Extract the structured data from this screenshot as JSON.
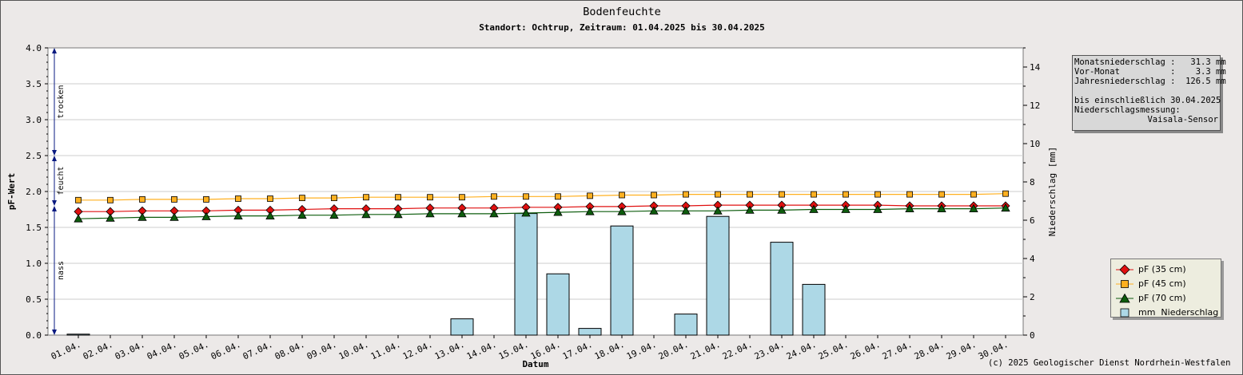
{
  "chart_data": {
    "type": "bar+line",
    "title": "Bodenfeuchte",
    "subtitle": "Standort: Ochtrup, Zeitraum: 01.04.2025 bis 30.04.2025",
    "xlabel": "Datum",
    "ylabel_left": "pF-Wert",
    "ylabel_right": "Niederschlag [mm]",
    "ylim_left": [
      0,
      4.0
    ],
    "ylim_right": [
      0,
      15
    ],
    "yticks_left": [
      "0.0",
      "0.5",
      "1.0",
      "1.5",
      "2.0",
      "2.5",
      "3.0",
      "3.5",
      "4.0"
    ],
    "yticks_right": [
      "0",
      "2",
      "4",
      "6",
      "8",
      "10",
      "12",
      "14"
    ],
    "grid": true,
    "zones": [
      {
        "label": "trocken",
        "from": 2.5,
        "to": 4.0
      },
      {
        "label": "feucht",
        "from": 1.8,
        "to": 2.5
      },
      {
        "label": "nass",
        "from": 0.0,
        "to": 1.8
      }
    ],
    "categories": [
      "01.04.",
      "02.04.",
      "03.04.",
      "04.04.",
      "05.04.",
      "06.04.",
      "07.04.",
      "08.04.",
      "09.04.",
      "10.04.",
      "11.04.",
      "12.04.",
      "13.04.",
      "14.04.",
      "15.04.",
      "16.04.",
      "17.04.",
      "18.04.",
      "19.04.",
      "20.04.",
      "21.04.",
      "22.04.",
      "23.04.",
      "24.04.",
      "25.04.",
      "26.04.",
      "27.04.",
      "28.04.",
      "29.04.",
      "30.04."
    ],
    "series": [
      {
        "name": "pF (35 cm)",
        "type": "line",
        "axis": "left",
        "color": "#e01010",
        "marker": "diamond",
        "values": [
          1.72,
          1.72,
          1.73,
          1.73,
          1.73,
          1.74,
          1.74,
          1.75,
          1.76,
          1.76,
          1.76,
          1.77,
          1.77,
          1.77,
          1.78,
          1.78,
          1.79,
          1.79,
          1.8,
          1.8,
          1.81,
          1.81,
          1.81,
          1.81,
          1.81,
          1.81,
          1.8,
          1.8,
          1.8,
          1.8
        ]
      },
      {
        "name": "pF (45 cm)",
        "type": "line",
        "axis": "left",
        "color": "#ffb020",
        "marker": "square",
        "values": [
          1.88,
          1.88,
          1.89,
          1.89,
          1.89,
          1.9,
          1.9,
          1.91,
          1.91,
          1.92,
          1.92,
          1.92,
          1.92,
          1.93,
          1.93,
          1.93,
          1.94,
          1.95,
          1.95,
          1.96,
          1.96,
          1.96,
          1.96,
          1.96,
          1.96,
          1.96,
          1.96,
          1.96,
          1.96,
          1.97
        ]
      },
      {
        "name": "pF (70 cm)",
        "type": "line",
        "axis": "left",
        "color": "#0d5c0d",
        "marker": "triangle",
        "values": [
          1.62,
          1.63,
          1.64,
          1.64,
          1.65,
          1.66,
          1.66,
          1.67,
          1.67,
          1.68,
          1.68,
          1.69,
          1.69,
          1.69,
          1.7,
          1.71,
          1.72,
          1.72,
          1.73,
          1.73,
          1.73,
          1.74,
          1.74,
          1.75,
          1.75,
          1.75,
          1.76,
          1.76,
          1.76,
          1.77
        ]
      },
      {
        "name": "mm  Niederschlag",
        "type": "bar",
        "axis": "right",
        "color": "#add8e6",
        "values": [
          0.05,
          0,
          0,
          0,
          0,
          0,
          0,
          0,
          0,
          0,
          0,
          0,
          0.85,
          0,
          6.35,
          3.2,
          0.35,
          5.7,
          0,
          1.1,
          6.2,
          0,
          4.85,
          2.65,
          0,
          0,
          0,
          0,
          0,
          0
        ]
      }
    ],
    "legend": "right-bottom"
  },
  "infobox": {
    "lines": [
      "Monatsniederschlag :   31.3 mm",
      "Vor-Monat          :    3.3 mm",
      "Jahresniederschlag :  126.5 mm",
      "",
      "bis einschließlich 30.04.2025",
      "Niederschlagsmessung:"
    ],
    "sensor": "Vaisala-Sensor"
  },
  "copyright": "(c) 2025 Geologischer Dienst Nordrhein-Westfalen"
}
